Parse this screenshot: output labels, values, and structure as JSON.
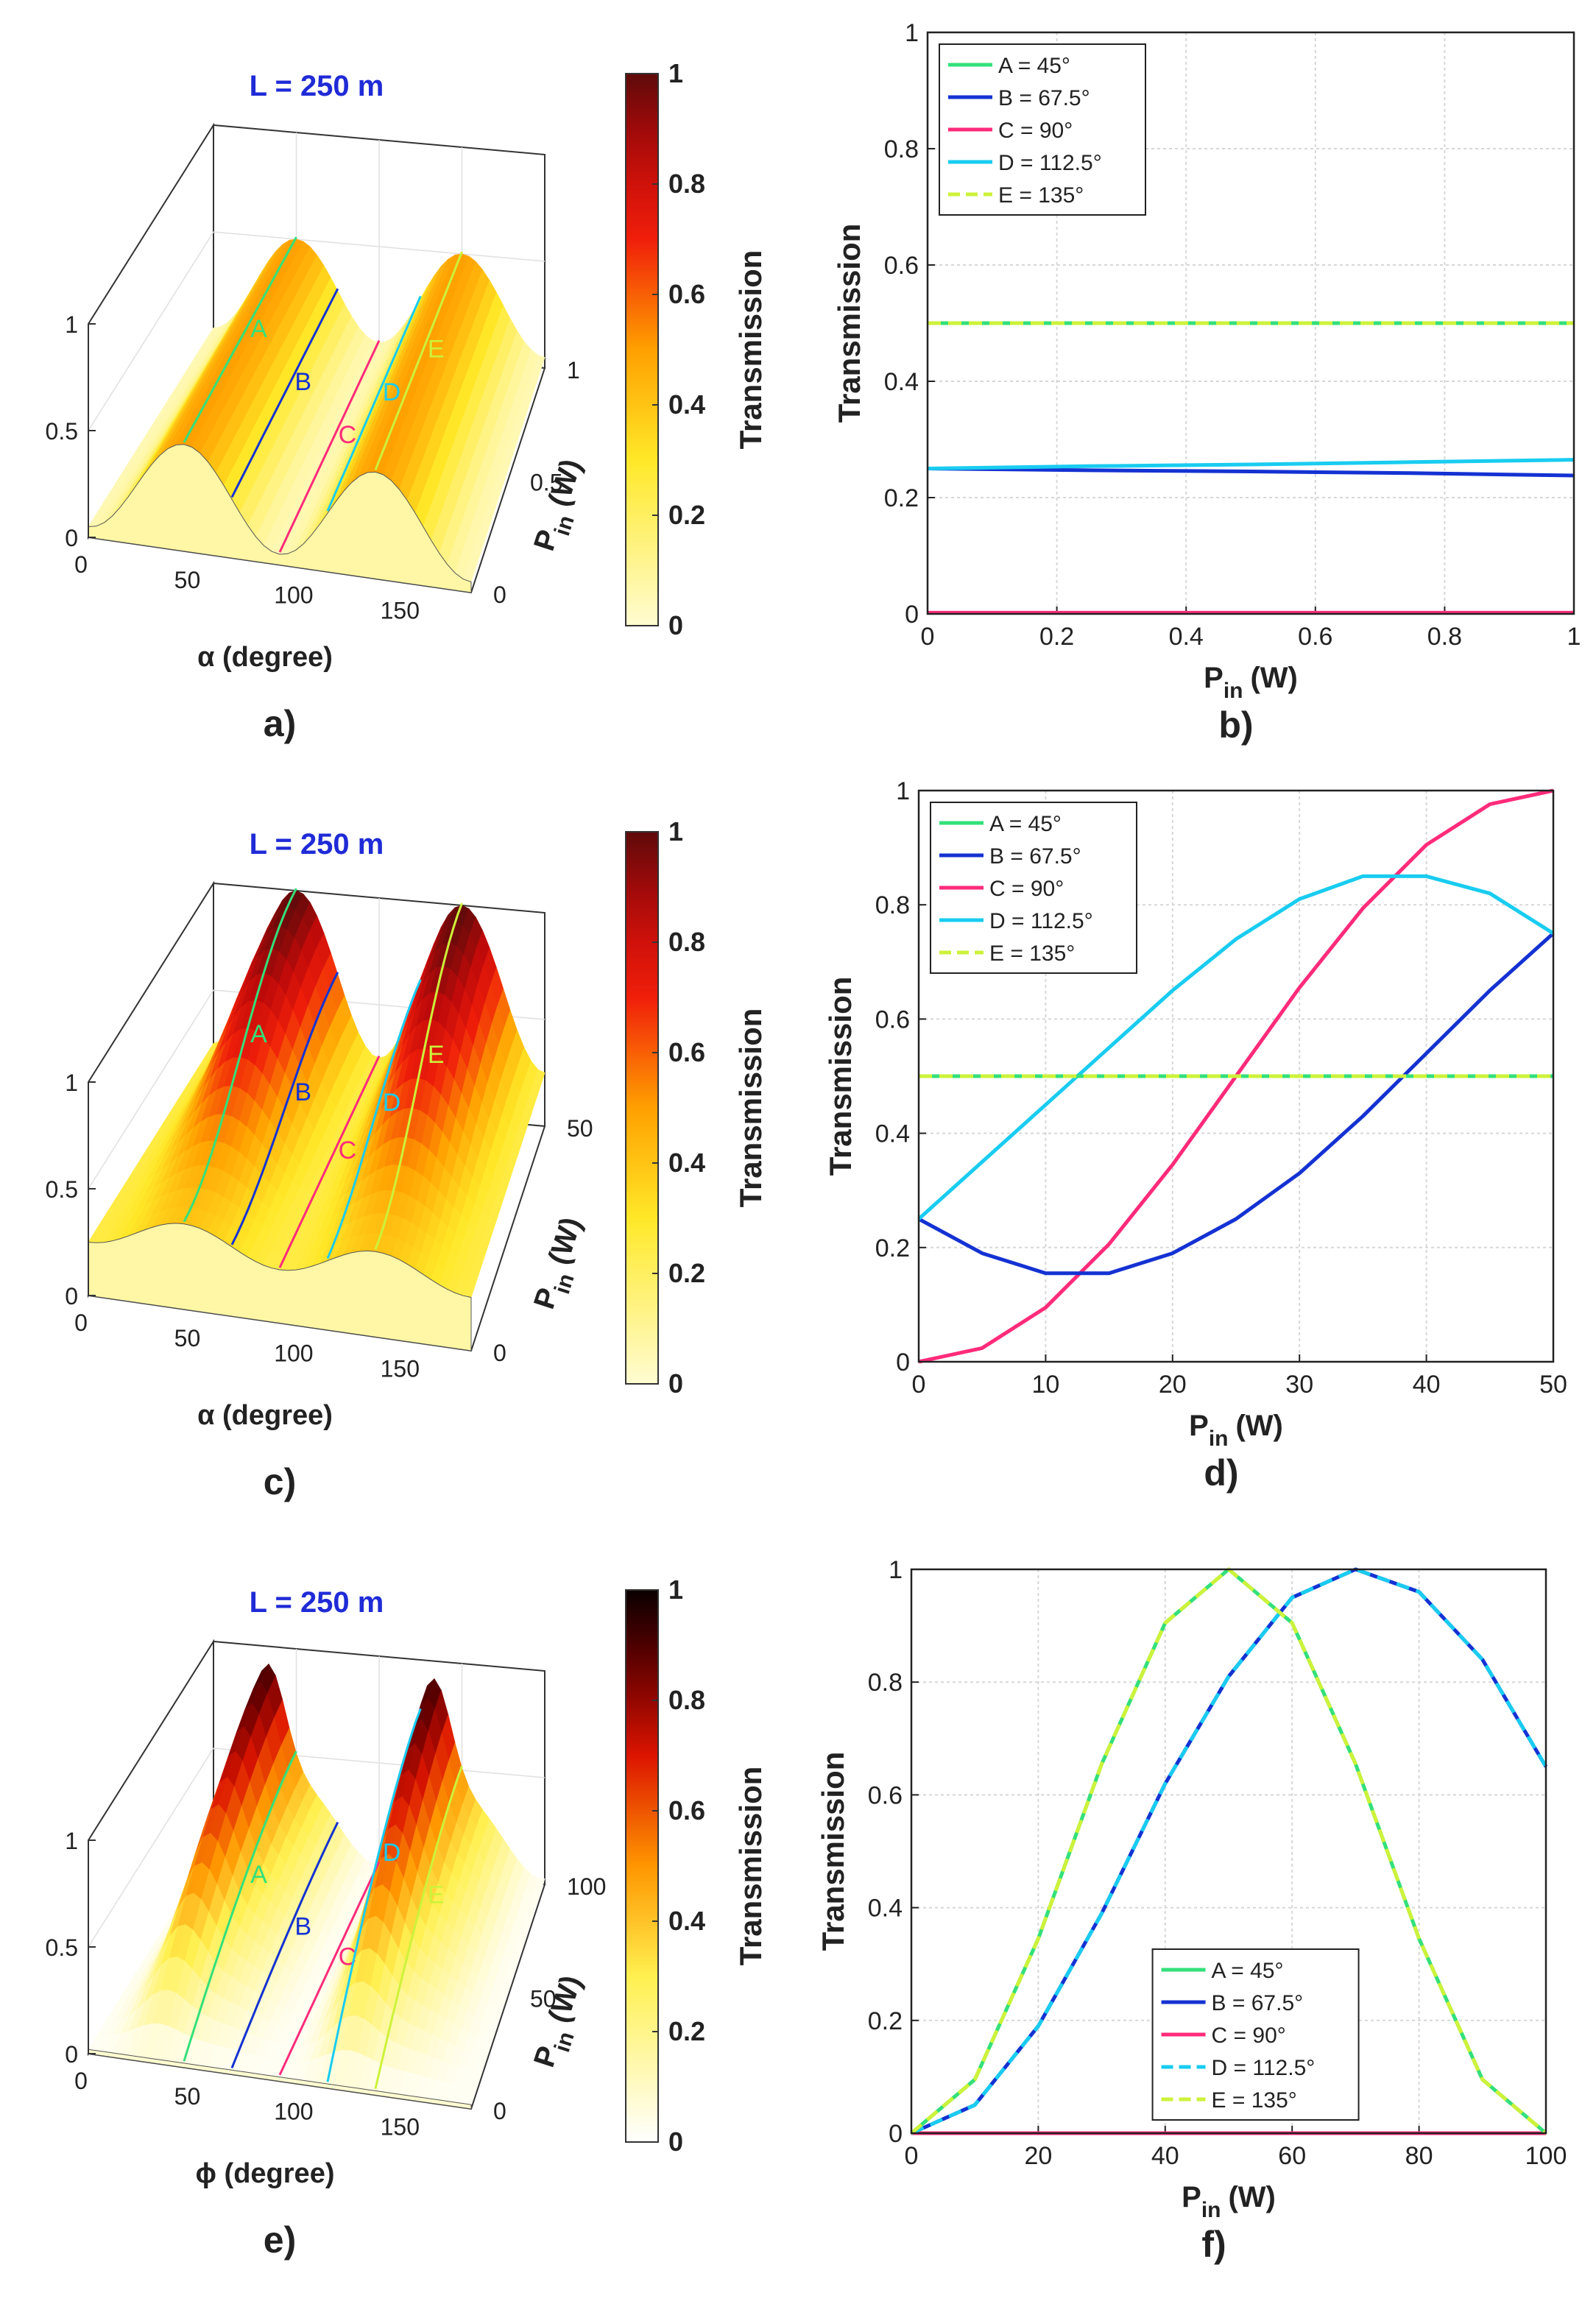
{
  "chart_data": [
    {
      "id": "a",
      "type": "surface3d",
      "panel_label": "a)",
      "title": "L = 250 m",
      "xlabel": "α (degree)",
      "ylabel_main": "P",
      "ylabel_sub": "in",
      "ylabel_unit": "(W)",
      "x_ticks": [
        "0",
        "50",
        "100",
        "150"
      ],
      "y_ticks": [
        "0",
        "0.5",
        "1"
      ],
      "z_ticks": [
        "0",
        "0.5",
        "1"
      ],
      "z_range": [
        0,
        1
      ],
      "colormap": "autumn-red",
      "surface_peak": 0.5,
      "curve_labels": [
        "A",
        "B",
        "C",
        "D",
        "E"
      ],
      "colorbar": {
        "label": "Transmission",
        "ticks": [
          "0",
          "0.2",
          "0.4",
          "0.6",
          "0.8",
          "1"
        ]
      }
    },
    {
      "id": "b",
      "type": "line",
      "panel_label": "b)",
      "xlabel_main": "P",
      "xlabel_sub": "in",
      "xlabel_unit": "(W)",
      "ylabel": "Transmission",
      "xlim": [
        0,
        1
      ],
      "ylim": [
        0,
        1
      ],
      "x_ticks": [
        "0",
        "0.2",
        "0.4",
        "0.6",
        "0.8",
        "1"
      ],
      "y_ticks": [
        "0",
        "0.2",
        "0.4",
        "0.6",
        "0.8",
        "1"
      ],
      "grid": true,
      "legend_position": "top-left",
      "x": [
        0,
        0.25,
        0.5,
        0.75,
        1
      ],
      "series": [
        {
          "name": "A = 45°",
          "color": "#33e07a",
          "dash": false,
          "values": [
            0.5,
            0.5,
            0.5,
            0.5,
            0.5
          ]
        },
        {
          "name": "B = 67.5°",
          "color": "#1432d2",
          "dash": false,
          "values": [
            0.25,
            0.247,
            0.245,
            0.242,
            0.238
          ]
        },
        {
          "name": "C = 90°",
          "color": "#ff2b7a",
          "dash": false,
          "values": [
            0.002,
            0.002,
            0.002,
            0.002,
            0.002
          ]
        },
        {
          "name": "D = 112.5°",
          "color": "#19ccf0",
          "dash": false,
          "values": [
            0.25,
            0.254,
            0.257,
            0.261,
            0.265
          ]
        },
        {
          "name": "E = 135°",
          "color": "#cdf23a",
          "dash": true,
          "values": [
            0.5,
            0.5,
            0.5,
            0.5,
            0.5
          ]
        }
      ]
    },
    {
      "id": "c",
      "type": "surface3d",
      "panel_label": "c)",
      "title": "L = 250 m",
      "xlabel": "α (degree)",
      "ylabel_main": "P",
      "ylabel_sub": "in",
      "ylabel_unit": "(W)",
      "x_ticks": [
        "0",
        "50",
        "100",
        "150"
      ],
      "y_ticks": [
        "0",
        "50"
      ],
      "z_ticks": [
        "0",
        "0.5",
        "1"
      ],
      "z_range": [
        0,
        1
      ],
      "colormap": "autumn-red",
      "surface_peak": 1.0,
      "curve_labels": [
        "A",
        "B",
        "C",
        "D",
        "E"
      ],
      "colorbar": {
        "label": "Transmission",
        "ticks": [
          "0",
          "0.2",
          "0.4",
          "0.6",
          "0.8",
          "1"
        ]
      }
    },
    {
      "id": "d",
      "type": "line",
      "panel_label": "d)",
      "xlabel_main": "P",
      "xlabel_sub": "in",
      "xlabel_unit": "(W)",
      "ylabel": "Transmission",
      "xlim": [
        0,
        50
      ],
      "ylim": [
        0,
        1
      ],
      "x_ticks": [
        "0",
        "10",
        "20",
        "30",
        "40",
        "50"
      ],
      "y_ticks": [
        "0",
        "0.2",
        "0.4",
        "0.6",
        "0.8",
        "1"
      ],
      "grid": true,
      "legend_position": "top-left",
      "x": [
        0,
        5,
        10,
        15,
        20,
        25,
        30,
        35,
        40,
        45,
        50
      ],
      "series": [
        {
          "name": "A = 45°",
          "color": "#33e07a",
          "dash": false,
          "values": [
            0.5,
            0.5,
            0.5,
            0.5,
            0.5,
            0.5,
            0.5,
            0.5,
            0.5,
            0.5,
            0.5
          ]
        },
        {
          "name": "B = 67.5°",
          "color": "#1432d2",
          "dash": false,
          "values": [
            0.25,
            0.19,
            0.155,
            0.155,
            0.19,
            0.25,
            0.33,
            0.43,
            0.54,
            0.65,
            0.75
          ]
        },
        {
          "name": "C = 90°",
          "color": "#ff2b7a",
          "dash": false,
          "values": [
            0.0,
            0.024,
            0.095,
            0.206,
            0.345,
            0.5,
            0.655,
            0.794,
            0.905,
            0.976,
            1.0
          ]
        },
        {
          "name": "D = 112.5°",
          "color": "#19ccf0",
          "dash": false,
          "values": [
            0.25,
            0.35,
            0.45,
            0.55,
            0.65,
            0.74,
            0.81,
            0.85,
            0.85,
            0.82,
            0.75
          ]
        },
        {
          "name": "E = 135°",
          "color": "#cdf23a",
          "dash": true,
          "values": [
            0.5,
            0.5,
            0.5,
            0.5,
            0.5,
            0.5,
            0.5,
            0.5,
            0.5,
            0.5,
            0.5
          ]
        }
      ]
    },
    {
      "id": "e",
      "type": "surface3d",
      "panel_label": "e)",
      "title": "L = 250 m",
      "xlabel": "ϕ (degree)",
      "ylabel_main": "P",
      "ylabel_sub": "in",
      "ylabel_unit": "(W)",
      "x_ticks": [
        "0",
        "50",
        "100",
        "150"
      ],
      "y_ticks": [
        "0",
        "50",
        "100"
      ],
      "z_ticks": [
        "0",
        "0.5",
        "1"
      ],
      "z_range": [
        0,
        1
      ],
      "colormap": "hot",
      "surface_peak": 1.0,
      "curve_labels": [
        "A",
        "B",
        "C",
        "D",
        "E"
      ],
      "colorbar": {
        "label": "Transmission",
        "ticks": [
          "0",
          "0.2",
          "0.4",
          "0.6",
          "0.8",
          "1"
        ]
      }
    },
    {
      "id": "f",
      "type": "line",
      "panel_label": "f)",
      "xlabel_main": "P",
      "xlabel_sub": "in",
      "xlabel_unit": "(W)",
      "ylabel": "Transmission",
      "xlim": [
        0,
        100
      ],
      "ylim": [
        0,
        1
      ],
      "x_ticks": [
        "0",
        "20",
        "40",
        "60",
        "80",
        "100"
      ],
      "y_ticks": [
        "0",
        "0.2",
        "0.4",
        "0.6",
        "0.8",
        "1"
      ],
      "grid": true,
      "legend_position": "bottom-center",
      "x": [
        0,
        10,
        20,
        30,
        40,
        50,
        60,
        70,
        80,
        90,
        100
      ],
      "series": [
        {
          "name": "A = 45°",
          "color": "#33e07a",
          "dash": false,
          "values": [
            0.0,
            0.095,
            0.345,
            0.655,
            0.905,
            1.0,
            0.905,
            0.655,
            0.345,
            0.095,
            0.0
          ]
        },
        {
          "name": "B = 67.5°",
          "color": "#1432d2",
          "dash": false,
          "values": [
            0.0,
            0.05,
            0.19,
            0.39,
            0.62,
            0.81,
            0.95,
            1.0,
            0.96,
            0.84,
            0.65
          ]
        },
        {
          "name": "C = 90°",
          "color": "#ff2b7a",
          "dash": false,
          "values": [
            0.0,
            0.0,
            0.0,
            0.0,
            0.0,
            0.0,
            0.0,
            0.0,
            0.0,
            0.0,
            0.0
          ]
        },
        {
          "name": "D = 112.5°",
          "color": "#19ccf0",
          "dash": true,
          "values": [
            0.0,
            0.05,
            0.19,
            0.39,
            0.62,
            0.81,
            0.95,
            1.0,
            0.96,
            0.84,
            0.65
          ]
        },
        {
          "name": "E = 135°",
          "color": "#cdf23a",
          "dash": true,
          "values": [
            0.0,
            0.095,
            0.345,
            0.655,
            0.905,
            1.0,
            0.905,
            0.655,
            0.345,
            0.095,
            0.0
          ]
        }
      ]
    }
  ]
}
